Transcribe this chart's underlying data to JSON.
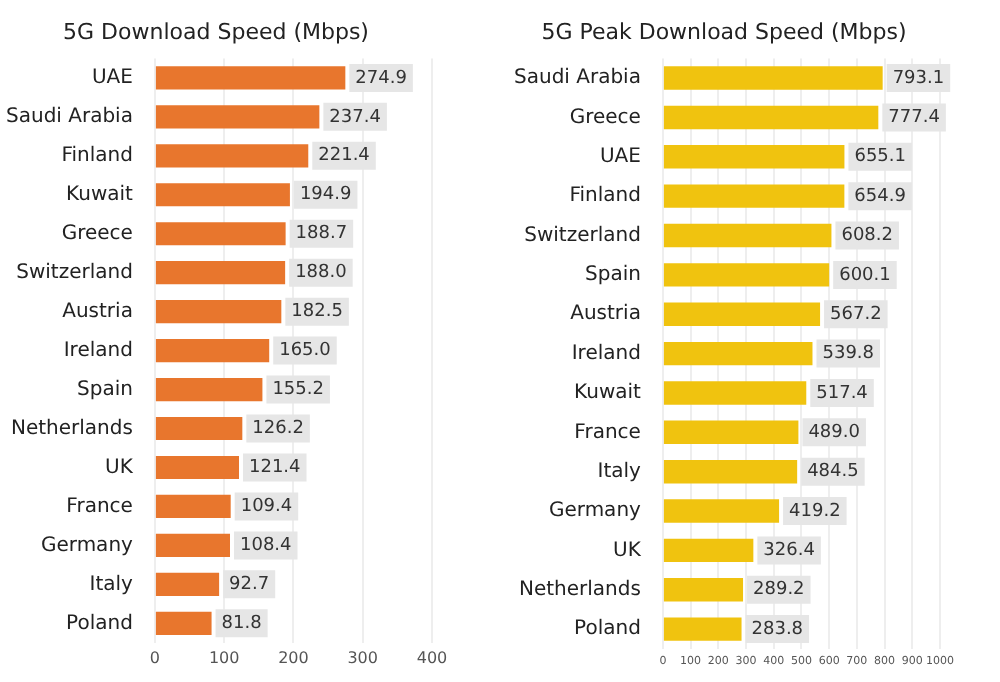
{
  "chart_data": [
    {
      "type": "bar",
      "title": "5G Download Speed (Mbps)",
      "orientation": "horizontal",
      "categories": [
        "UAE",
        "Saudi Arabia",
        "Finland",
        "Kuwait",
        "Greece",
        "Switzerland",
        "Austria",
        "Ireland",
        "Spain",
        "Netherlands",
        "UK",
        "France",
        "Germany",
        "Italy",
        "Poland"
      ],
      "values": [
        274.9,
        237.4,
        221.4,
        194.9,
        188.7,
        188.0,
        182.5,
        165.0,
        155.2,
        126.2,
        121.4,
        109.4,
        108.4,
        92.7,
        81.8
      ],
      "value_labels": [
        "274.9",
        "237.4",
        "221.4",
        "194.9",
        "188.7",
        "188.0",
        "182.5",
        "165.0",
        "155.2",
        "126.2",
        "121.4",
        "109.4",
        "108.4",
        "92.7",
        "81.8"
      ],
      "color": "#e8762d",
      "xlim": [
        0,
        400
      ],
      "xticks": [
        0,
        100,
        200,
        300,
        400
      ],
      "grid": "x",
      "legend": false
    },
    {
      "type": "bar",
      "title": "5G Peak Download Speed (Mbps)",
      "orientation": "horizontal",
      "categories": [
        "Saudi Arabia",
        "Greece",
        "UAE",
        "Finland",
        "Switzerland",
        "Spain",
        "Austria",
        "Ireland",
        "Kuwait",
        "France",
        "Italy",
        "Germany",
        "UK",
        "Netherlands",
        "Poland"
      ],
      "values": [
        793.1,
        777.4,
        655.1,
        654.9,
        608.2,
        600.1,
        567.2,
        539.8,
        517.4,
        489.0,
        484.5,
        419.2,
        326.4,
        289.2,
        283.8
      ],
      "value_labels": [
        "793.1",
        "777.4",
        "655.1",
        "654.9",
        "608.2",
        "600.1",
        "567.2",
        "539.8",
        "517.4",
        "489.0",
        "484.5",
        "419.2",
        "326.4",
        "289.2",
        "283.8"
      ],
      "color": "#f0c30f",
      "xlim": [
        0,
        1000
      ],
      "xticks": [
        0,
        100,
        200,
        300,
        400,
        500,
        600,
        700,
        800,
        900,
        1000
      ],
      "grid": "x",
      "legend": false
    }
  ]
}
